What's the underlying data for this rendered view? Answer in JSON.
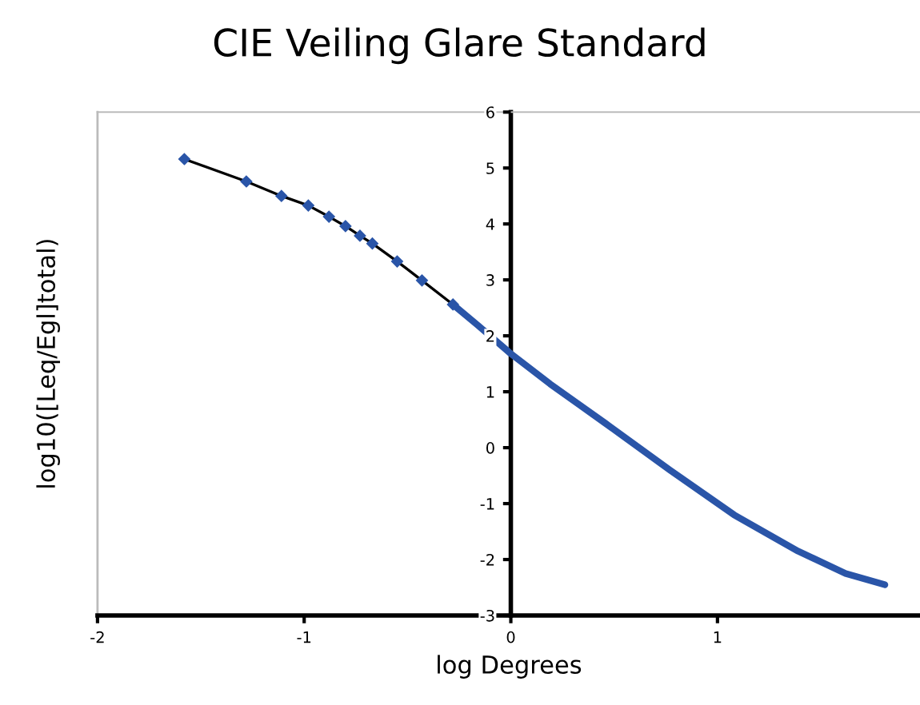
{
  "chart_data": {
    "type": "line",
    "title": "CIE Veiling Glare Standard",
    "xlabel": "log Degrees",
    "ylabel": "log10([Leq/Egl]total)",
    "xlim": [
      -2,
      1.98
    ],
    "xticks": [
      -2,
      -1,
      0,
      1
    ],
    "ylim": [
      -3,
      6
    ],
    "yticks": [
      -3,
      -2,
      -1,
      0,
      1,
      2,
      3,
      4,
      5,
      6
    ],
    "grid": false,
    "legend": false,
    "series": [
      {
        "color": "#2a55a8",
        "marker": "diamond",
        "x": [
          -1.58,
          -1.28,
          -1.11,
          -0.98,
          -0.88,
          -0.8,
          -0.73,
          -0.67,
          -0.55,
          -0.43,
          -0.28
        ],
        "values": [
          5.16,
          4.76,
          4.5,
          4.33,
          4.13,
          3.96,
          3.79,
          3.65,
          3.33,
          2.99,
          2.56
        ]
      },
      {
        "color": "#2a55a8",
        "marker": "none",
        "x": [
          -0.28,
          -0.16,
          0,
          0.19,
          0.46,
          0.77,
          1.08,
          1.39,
          1.62,
          1.81
        ],
        "values": [
          2.56,
          2.19,
          1.68,
          1.14,
          0.43,
          -0.4,
          -1.2,
          -1.85,
          -2.25,
          -2.45
        ]
      }
    ]
  }
}
